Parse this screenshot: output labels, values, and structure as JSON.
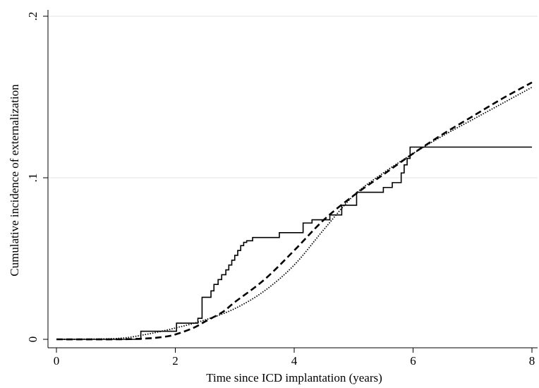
{
  "chart_data": {
    "type": "line",
    "title": "",
    "xlabel": "Time since ICD implantation (years)",
    "ylabel": "Cumulative incidence of externalization",
    "xlim": [
      0,
      8
    ],
    "ylim": [
      0,
      0.2
    ],
    "x_ticks": [
      {
        "value": 0,
        "label": "0"
      },
      {
        "value": 2,
        "label": "2"
      },
      {
        "value": 4,
        "label": "4"
      },
      {
        "value": 6,
        "label": "6"
      },
      {
        "value": 8,
        "label": "8"
      }
    ],
    "y_ticks": [
      {
        "value": 0,
        "label": "0"
      },
      {
        "value": 0.1,
        "label": ".1"
      },
      {
        "value": 0.2,
        "label": ".2"
      }
    ],
    "grid": {
      "horizontal": true,
      "vertical": false,
      "color": "#e3e3e3"
    },
    "legend": "none",
    "series": [
      {
        "style": "step",
        "dash": "solid",
        "color": "#000000",
        "x": [
          0,
          1.42,
          2.02,
          2.38,
          2.45,
          2.6,
          2.65,
          2.72,
          2.78,
          2.85,
          2.9,
          2.95,
          3.0,
          3.05,
          3.1,
          3.15,
          3.2,
          3.3,
          3.75,
          4.15,
          4.3,
          4.6,
          4.8,
          5.05,
          5.5,
          5.65,
          5.8,
          5.85,
          5.9,
          5.95,
          8.0
        ],
        "y": [
          0,
          0.005,
          0.01,
          0.013,
          0.026,
          0.03,
          0.034,
          0.037,
          0.04,
          0.043,
          0.046,
          0.049,
          0.052,
          0.055,
          0.058,
          0.06,
          0.061,
          0.063,
          0.066,
          0.072,
          0.074,
          0.077,
          0.083,
          0.091,
          0.094,
          0.097,
          0.103,
          0.108,
          0.112,
          0.119,
          0.119
        ]
      },
      {
        "style": "smooth",
        "dash": "dashed",
        "color": "#000000",
        "x": [
          0,
          1.0,
          1.5,
          1.8,
          2.0,
          2.3,
          2.5,
          2.8,
          3.0,
          3.5,
          4.0,
          4.5,
          5.0,
          5.5,
          6.0,
          6.5,
          7.0,
          7.5,
          8.0
        ],
        "y": [
          0,
          0,
          0.0005,
          0.0015,
          0.003,
          0.007,
          0.011,
          0.017,
          0.023,
          0.037,
          0.055,
          0.074,
          0.089,
          0.102,
          0.115,
          0.127,
          0.138,
          0.149,
          0.159
        ]
      },
      {
        "style": "smooth",
        "dash": "dotted",
        "color": "#000000",
        "x": [
          0,
          1.0,
          1.5,
          2.0,
          2.5,
          3.0,
          3.5,
          4.0,
          4.5,
          5.0,
          5.5,
          6.0,
          6.5,
          7.0,
          7.5,
          8.0
        ],
        "y": [
          0,
          0.0005,
          0.003,
          0.007,
          0.012,
          0.019,
          0.03,
          0.046,
          0.068,
          0.089,
          0.103,
          0.115,
          0.126,
          0.136,
          0.146,
          0.156
        ]
      }
    ]
  }
}
